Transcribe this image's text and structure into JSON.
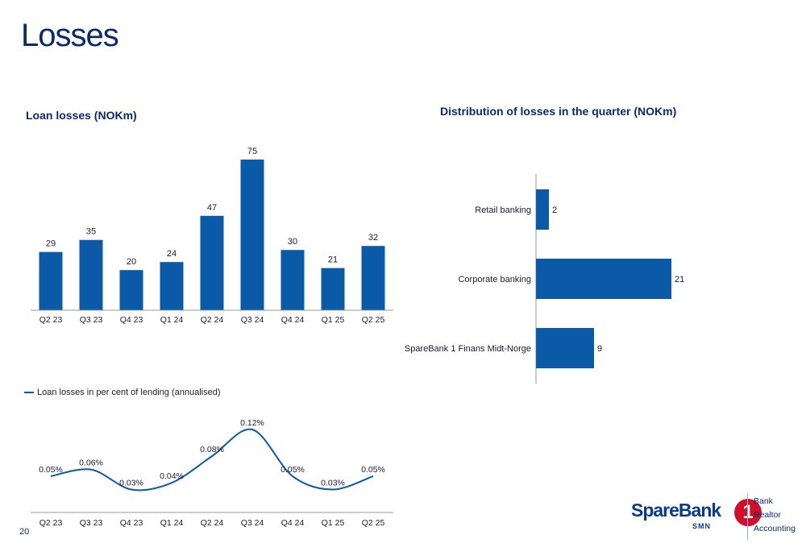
{
  "page": {
    "title": "Losses",
    "page_number": "20"
  },
  "logo": {
    "word": "SpareBank",
    "digit": "1",
    "sub": "SMN",
    "items": [
      "Bank",
      "Realtor",
      "Accounting"
    ]
  },
  "colors": {
    "primary": "#0b5aa8",
    "title": "#0b2a6b",
    "logo_red": "#d0102a"
  },
  "chart_data": [
    {
      "type": "bar",
      "title": "Loan losses (NOKm)",
      "categories": [
        "Q2 23",
        "Q3 23",
        "Q4 23",
        "Q1 24",
        "Q2 24",
        "Q3 24",
        "Q4 24",
        "Q1 25",
        "Q2 25"
      ],
      "values": [
        29,
        35,
        20,
        24,
        47,
        75,
        30,
        21,
        32
      ],
      "data_labels": [
        "29",
        "35",
        "20",
        "24",
        "47",
        "75",
        "30",
        "21",
        "32"
      ],
      "ylim": [
        0,
        75
      ],
      "color": "#0b5aa8",
      "orientation": "vertical"
    },
    {
      "type": "line",
      "legend": "Loan losses in per cent of lending (annualised)",
      "legend_position": "top-left",
      "categories": [
        "Q2 23",
        "Q3 23",
        "Q4 23",
        "Q1 24",
        "Q2 24",
        "Q3 24",
        "Q4 24",
        "Q1 25",
        "Q2 25"
      ],
      "values": [
        0.05,
        0.06,
        0.03,
        0.04,
        0.08,
        0.12,
        0.05,
        0.03,
        0.05
      ],
      "data_labels": [
        "0.05%",
        "0.06%",
        "0.03%",
        "0.04%",
        "0.08%",
        "0.12%",
        "0.05%",
        "0.03%",
        "0.05%"
      ],
      "color": "#0b5aa8",
      "smooth": true
    },
    {
      "type": "bar",
      "orientation": "horizontal",
      "title": "Distribution of losses in the quarter (NOKm)",
      "categories": [
        "Retail banking",
        "Corporate banking",
        "SpareBank 1 Finans Midt-Norge"
      ],
      "values": [
        2,
        21,
        9
      ],
      "data_labels": [
        "2",
        "21",
        "9"
      ],
      "xlim": [
        0,
        21
      ],
      "color": "#0b5aa8"
    }
  ]
}
